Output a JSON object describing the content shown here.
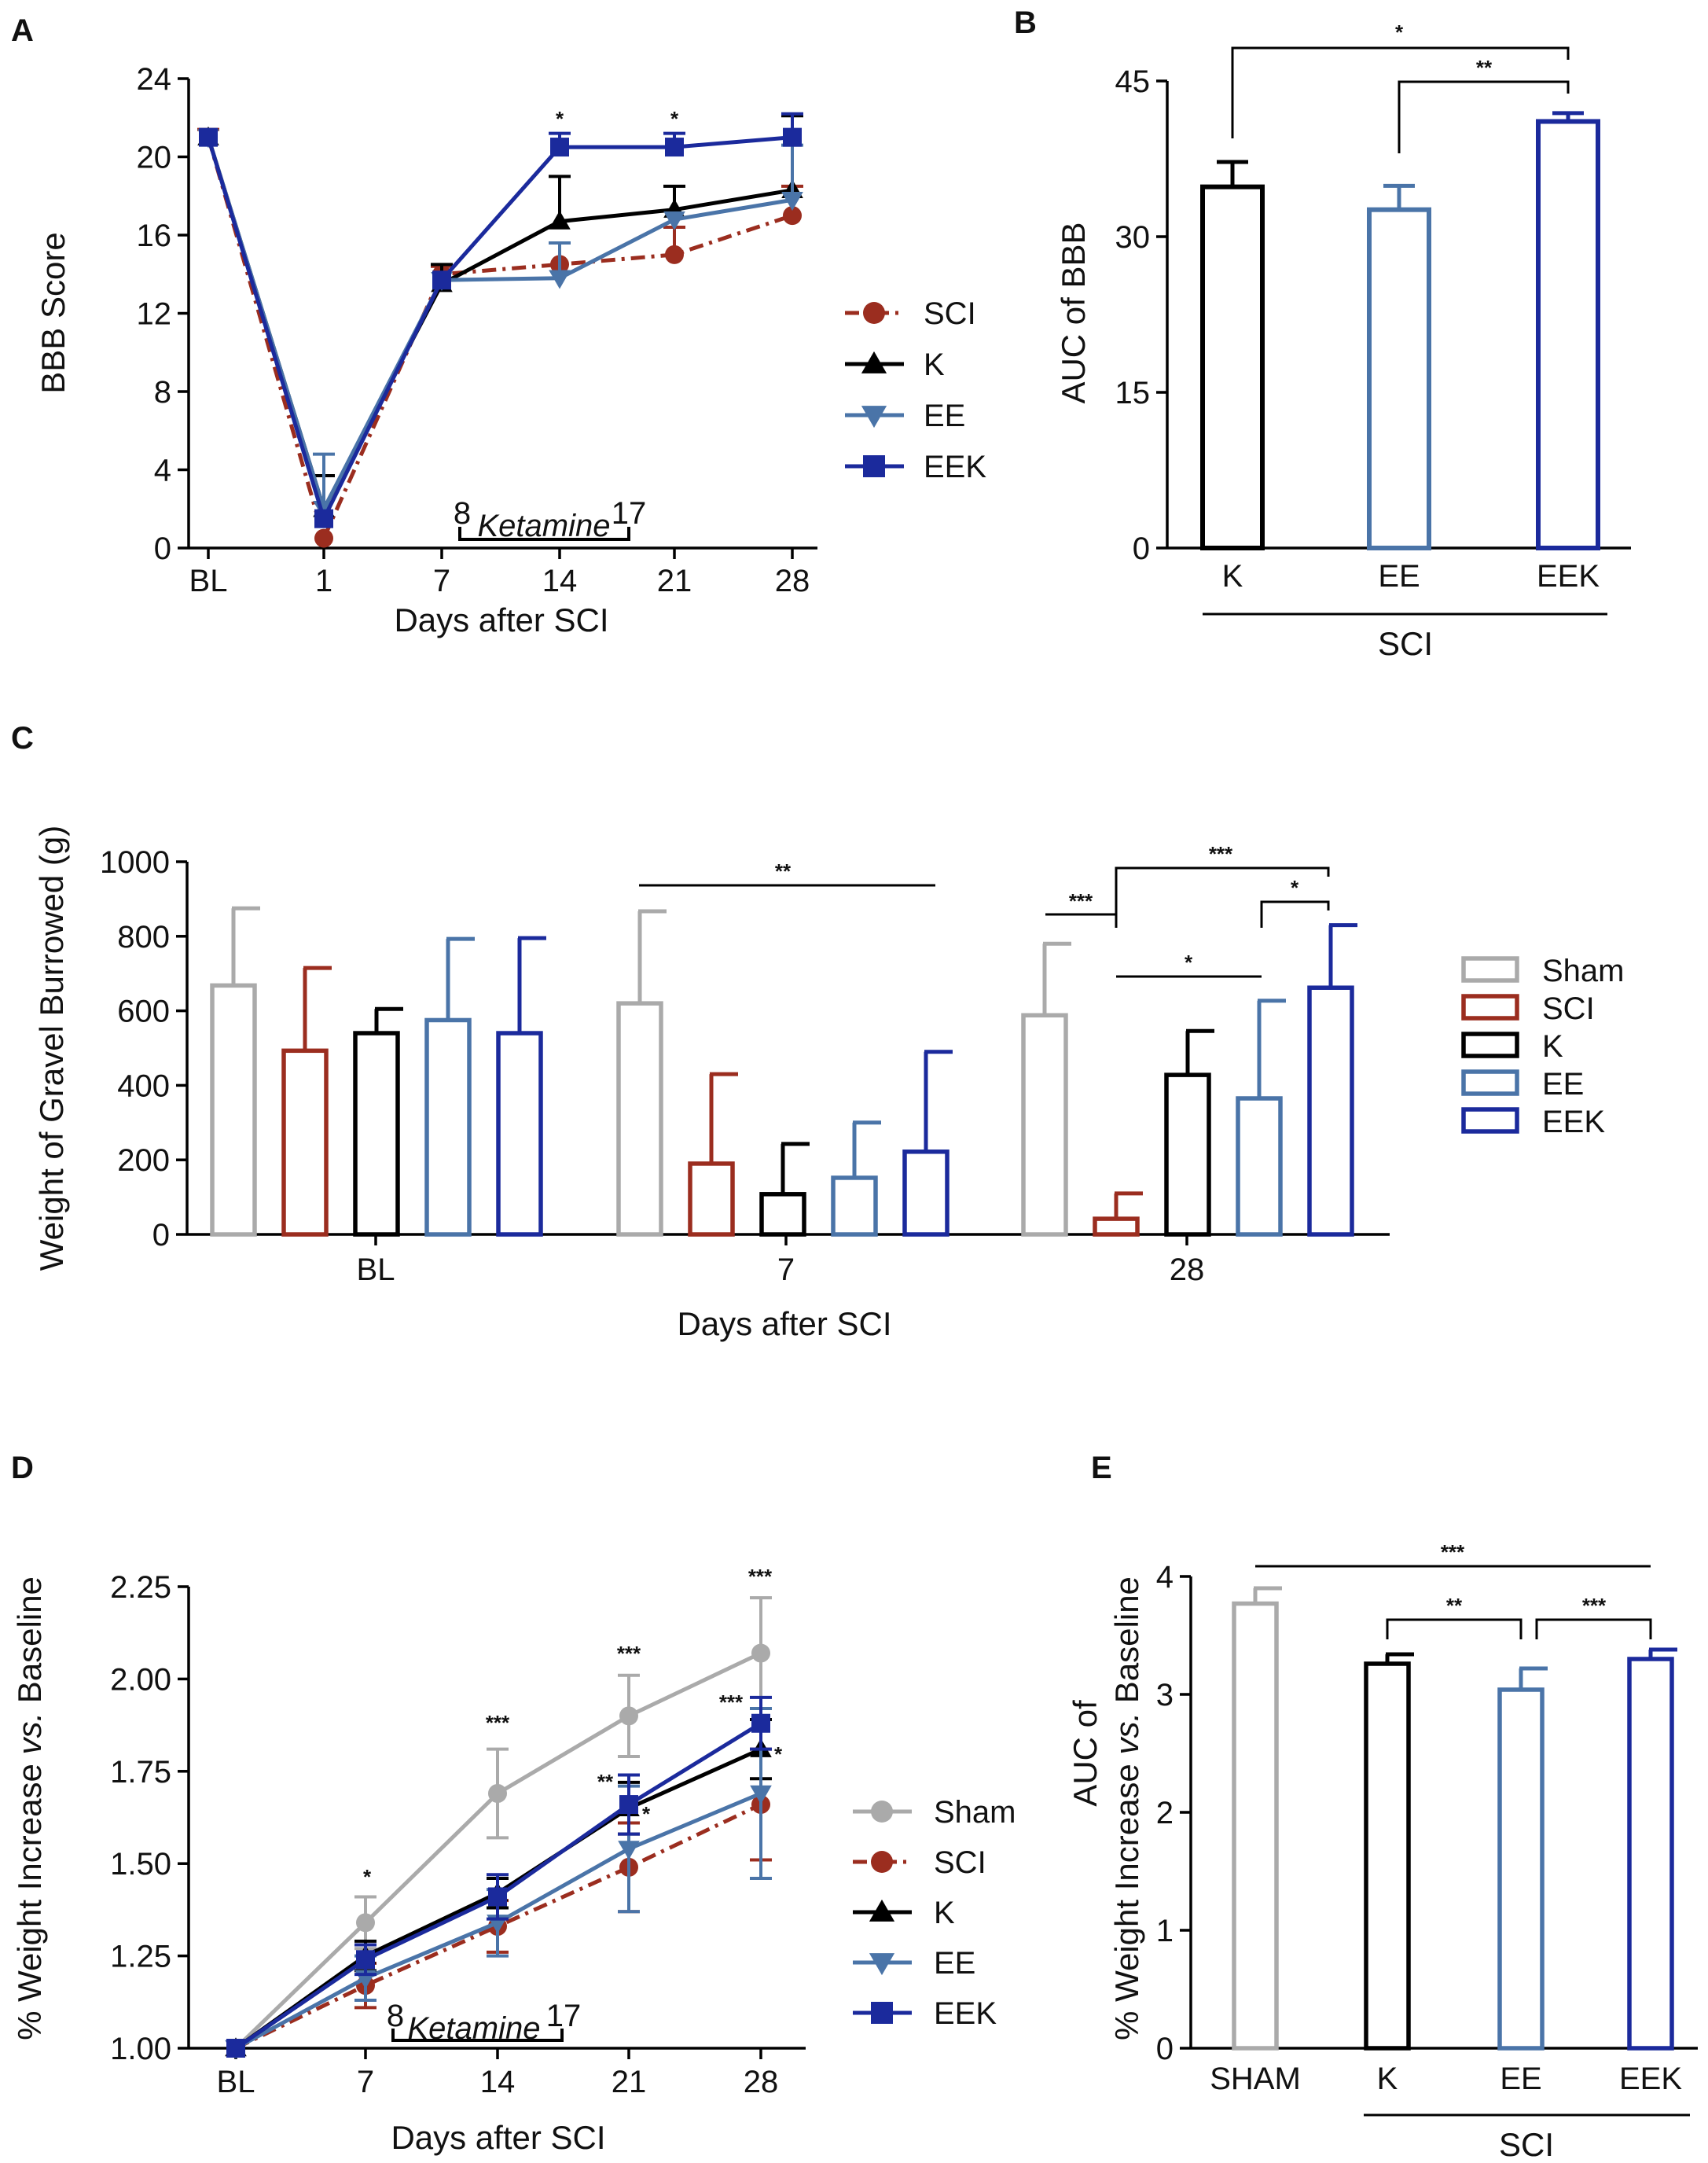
{
  "colors": {
    "Sham": "#aaaaaa",
    "SCI": "#9b2d1f",
    "K": "#000000",
    "EE": "#4a74a8",
    "EEK": "#1b2a9c"
  },
  "chart_data": [
    {
      "panel": "A",
      "type": "line",
      "title": "",
      "xlabel": "Days after SCI",
      "ylabel": "BBB Score",
      "categories": [
        "BL",
        "1",
        "7",
        "14",
        "21",
        "28"
      ],
      "yticks": [
        "0",
        "4",
        "8",
        "12",
        "16",
        "20",
        "24"
      ],
      "ylim": [
        0,
        24
      ],
      "series": [
        {
          "name": "SCI",
          "marker": "circle",
          "dash": "dashdot",
          "values": [
            21,
            0.5,
            14,
            14.5,
            15,
            17
          ],
          "errors": [
            0.4,
            0,
            0.4,
            0,
            1.4,
            1.5
          ]
        },
        {
          "name": "K",
          "marker": "triangle-up",
          "dash": "solid",
          "values": [
            21,
            2,
            13.5,
            16.7,
            17.3,
            18.3
          ],
          "errors": [
            0,
            1.7,
            1,
            2.3,
            1.2,
            3.8
          ]
        },
        {
          "name": "EE",
          "marker": "triangle-down",
          "dash": "solid",
          "values": [
            21,
            2,
            13.7,
            13.8,
            16.8,
            17.8
          ],
          "errors": [
            0,
            2.8,
            0,
            1.8,
            0,
            2.8
          ]
        },
        {
          "name": "EEK",
          "marker": "square",
          "dash": "solid",
          "values": [
            21,
            1.5,
            13.7,
            20.5,
            20.5,
            21
          ],
          "errors": [
            0,
            0,
            0,
            0.7,
            0.7,
            1.2
          ]
        }
      ],
      "significance": [
        {
          "at": "14",
          "label": "*"
        },
        {
          "at": "21",
          "label": "*"
        }
      ],
      "treatment": {
        "start_label": "8",
        "text": "Ketamine",
        "end_label": "17"
      }
    },
    {
      "panel": "B",
      "type": "bar",
      "xlabel": "",
      "ylabel": "AUC of BBB",
      "group_label": "SCI",
      "categories": [
        "K",
        "EE",
        "EEK"
      ],
      "values": [
        34.8,
        32.6,
        41.1
      ],
      "errors": [
        2.4,
        2.3,
        0.8
      ],
      "series_colors": [
        "K",
        "EE",
        "EEK"
      ],
      "yticks": [
        "0",
        "15",
        "30",
        "45"
      ],
      "ylim": [
        0,
        45
      ],
      "significance": [
        {
          "from": "K",
          "to": "EEK",
          "label": "*"
        },
        {
          "from": "EE",
          "to": "EEK",
          "label": "**"
        }
      ]
    },
    {
      "panel": "C",
      "type": "bar",
      "xlabel": "Days after SCI",
      "ylabel": "Weight of Gravel Burrowed (g)",
      "categories": [
        "BL",
        "7",
        "28"
      ],
      "yticks": [
        "0",
        "200",
        "400",
        "600",
        "800",
        "1000"
      ],
      "ylim": [
        0,
        1000
      ],
      "series": [
        {
          "name": "Sham",
          "values": [
            668,
            620,
            588
          ],
          "errors": [
            207,
            247,
            192
          ]
        },
        {
          "name": "SCI",
          "values": [
            493,
            190,
            42
          ],
          "errors": [
            222,
            240,
            68
          ]
        },
        {
          "name": "K",
          "values": [
            540,
            108,
            428
          ],
          "errors": [
            65,
            135,
            118
          ]
        },
        {
          "name": "EE",
          "values": [
            575,
            152,
            365
          ],
          "errors": [
            218,
            148,
            262
          ]
        },
        {
          "name": "EEK",
          "values": [
            540,
            222,
            662
          ],
          "errors": [
            255,
            268,
            168
          ]
        }
      ],
      "significance": [
        {
          "label": "**",
          "span": "7 Sham – 7 EEK"
        },
        {
          "label": "***",
          "span": "28 Sham – 28 SCI"
        },
        {
          "label": "***",
          "span": "28 SCI – 28 EEK"
        },
        {
          "label": "*",
          "span": "28 EE – 28 EEK"
        },
        {
          "label": "*",
          "span": "28 SCI – 28 EE"
        }
      ]
    },
    {
      "panel": "D",
      "type": "line",
      "xlabel": "Days after SCI",
      "ylabel_parts": [
        "% Weight Increase ",
        "vs.",
        " Baseline"
      ],
      "categories": [
        "BL",
        "7",
        "14",
        "21",
        "28"
      ],
      "yticks": [
        "1.00",
        "1.25",
        "1.50",
        "1.75",
        "2.00",
        "2.25"
      ],
      "ylim": [
        1.0,
        2.25
      ],
      "series": [
        {
          "name": "Sham",
          "marker": "circle",
          "dash": "solid",
          "values": [
            1.0,
            1.34,
            1.69,
            1.9,
            2.07
          ],
          "errors": [
            0,
            0.07,
            0.12,
            0.11,
            0.15
          ]
        },
        {
          "name": "SCI",
          "marker": "circle",
          "dash": "dashdot",
          "values": [
            1.0,
            1.17,
            1.33,
            1.49,
            1.66
          ],
          "errors": [
            0,
            0.06,
            0.07,
            0.12,
            0.15
          ]
        },
        {
          "name": "K",
          "marker": "triangle-up",
          "dash": "solid",
          "values": [
            1.0,
            1.25,
            1.42,
            1.65,
            1.81
          ],
          "errors": [
            0,
            0.04,
            0.04,
            0.07,
            0.08
          ]
        },
        {
          "name": "EE",
          "marker": "triangle-down",
          "dash": "solid",
          "values": [
            1.0,
            1.19,
            1.34,
            1.54,
            1.69
          ],
          "errors": [
            0,
            0.06,
            0.09,
            0.17,
            0.23
          ]
        },
        {
          "name": "EEK",
          "marker": "square",
          "dash": "solid",
          "values": [
            1.0,
            1.24,
            1.41,
            1.66,
            1.88
          ],
          "errors": [
            0,
            0.04,
            0.06,
            0.08,
            0.07
          ]
        }
      ],
      "significance": [
        {
          "at": "7",
          "label": "*",
          "near": "Sham"
        },
        {
          "at": "14",
          "label": "***",
          "near": "Sham"
        },
        {
          "at": "21",
          "label": "***",
          "near": "Sham"
        },
        {
          "at": "28",
          "label": "***",
          "near": "Sham"
        },
        {
          "at": "21",
          "label": "**",
          "near": "EEK"
        },
        {
          "at": "21",
          "label": "*",
          "near": "K"
        },
        {
          "at": "28",
          "label": "***",
          "near": "EEK"
        },
        {
          "at": "28",
          "label": "*",
          "near": "K"
        }
      ],
      "treatment": {
        "start_label": "8",
        "text": "Ketamine",
        "end_label": "17"
      }
    },
    {
      "panel": "E",
      "type": "bar",
      "xlabel": "",
      "ylabel_parts": [
        "AUC of",
        "% Weight Increase ",
        "vs.",
        " Baseline"
      ],
      "group_label": "SCI",
      "categories": [
        "SHAM",
        "K",
        "EE",
        "EEK"
      ],
      "values": [
        3.77,
        3.26,
        3.04,
        3.3
      ],
      "errors": [
        0.13,
        0.08,
        0.18,
        0.08
      ],
      "series_colors": [
        "Sham",
        "K",
        "EE",
        "EEK"
      ],
      "yticks": [
        "0",
        "1",
        "2",
        "3",
        "4"
      ],
      "ylim": [
        0,
        4
      ],
      "significance": [
        {
          "from": "SHAM",
          "to": "EEK",
          "label": "***"
        },
        {
          "from": "K",
          "to": "EE",
          "label": "**"
        },
        {
          "from": "EE",
          "to": "EEK",
          "label": "***"
        }
      ]
    }
  ]
}
